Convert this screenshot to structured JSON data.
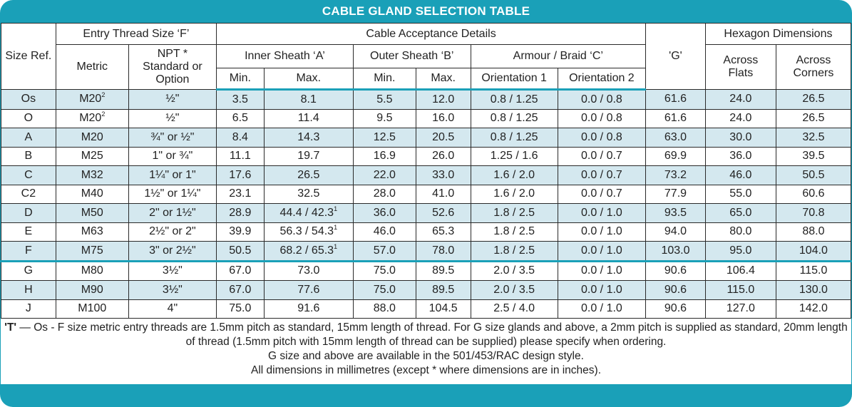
{
  "title": "CABLE GLAND SELECTION TABLE",
  "header": {
    "size_ref": "Size Ref.",
    "entry_thread": "Entry Thread Size ‘F’",
    "cable_acceptance": "Cable Acceptance Details",
    "g": "'G'",
    "hexagon": "Hexagon Dimensions",
    "metric": "Metric",
    "npt": "NPT *\nStandard or\nOption",
    "inner_sheath": "Inner Sheath ‘A’",
    "outer_sheath": "Outer Sheath ‘B’",
    "armour": "Armour / Braid ‘C’",
    "across_flats": "Across\nFlats",
    "across_corners": "Across\nCorners",
    "min": "Min.",
    "max": "Max.",
    "orientation1": "Orientation 1",
    "orientation2": "Orientation 2"
  },
  "rows": [
    {
      "size": "Os",
      "metric": "M20",
      "metric_sup": "2",
      "npt": "½\"",
      "a_min": "3.5",
      "a_max": "8.1",
      "a_max_sup": "",
      "b_min": "5.5",
      "b_max": "12.0",
      "o1": "0.8 / 1.25",
      "o2": "0.0 / 0.8",
      "g": "61.6",
      "af": "24.0",
      "ac": "26.5"
    },
    {
      "size": "O",
      "metric": "M20",
      "metric_sup": "2",
      "npt": "½\"",
      "a_min": "6.5",
      "a_max": "11.4",
      "a_max_sup": "",
      "b_min": "9.5",
      "b_max": "16.0",
      "o1": "0.8 / 1.25",
      "o2": "0.0 / 0.8",
      "g": "61.6",
      "af": "24.0",
      "ac": "26.5"
    },
    {
      "size": "A",
      "metric": "M20",
      "metric_sup": "",
      "npt": "¾\" or ½\"",
      "a_min": "8.4",
      "a_max": "14.3",
      "a_max_sup": "",
      "b_min": "12.5",
      "b_max": "20.5",
      "o1": "0.8 / 1.25",
      "o2": "0.0 / 0.8",
      "g": "63.0",
      "af": "30.0",
      "ac": "32.5"
    },
    {
      "size": "B",
      "metric": "M25",
      "metric_sup": "",
      "npt": "1\" or ¾\"",
      "a_min": "11.1",
      "a_max": "19.7",
      "a_max_sup": "",
      "b_min": "16.9",
      "b_max": "26.0",
      "o1": "1.25 / 1.6",
      "o2": "0.0 / 0.7",
      "g": "69.9",
      "af": "36.0",
      "ac": "39.5"
    },
    {
      "size": "C",
      "metric": "M32",
      "metric_sup": "",
      "npt": "1¼\" or 1\"",
      "a_min": "17.6",
      "a_max": "26.5",
      "a_max_sup": "",
      "b_min": "22.0",
      "b_max": "33.0",
      "o1": "1.6 / 2.0",
      "o2": "0.0 / 0.7",
      "g": "73.2",
      "af": "46.0",
      "ac": "50.5"
    },
    {
      "size": "C2",
      "metric": "M40",
      "metric_sup": "",
      "npt": "1½\" or 1¼\"",
      "a_min": "23.1",
      "a_max": "32.5",
      "a_max_sup": "",
      "b_min": "28.0",
      "b_max": "41.0",
      "o1": "1.6 / 2.0",
      "o2": "0.0 / 0.7",
      "g": "77.9",
      "af": "55.0",
      "ac": "60.6"
    },
    {
      "size": "D",
      "metric": "M50",
      "metric_sup": "",
      "npt": "2\" or 1½\"",
      "a_min": "28.9",
      "a_max": "44.4 / 42.3",
      "a_max_sup": "1",
      "b_min": "36.0",
      "b_max": "52.6",
      "o1": "1.8 / 2.5",
      "o2": "0.0 / 1.0",
      "g": "93.5",
      "af": "65.0",
      "ac": "70.8"
    },
    {
      "size": "E",
      "metric": "M63",
      "metric_sup": "",
      "npt": "2½\" or 2\"",
      "a_min": "39.9",
      "a_max": "56.3 / 54.3",
      "a_max_sup": "1",
      "b_min": "46.0",
      "b_max": "65.3",
      "o1": "1.8 / 2.5",
      "o2": "0.0 / 1.0",
      "g": "94.0",
      "af": "80.0",
      "ac": "88.0"
    },
    {
      "size": "F",
      "metric": "M75",
      "metric_sup": "",
      "npt": "3\" or 2½\"",
      "a_min": "50.5",
      "a_max": "68.2 / 65.3",
      "a_max_sup": "1",
      "b_min": "57.0",
      "b_max": "78.0",
      "o1": "1.8 / 2.5",
      "o2": "0.0 / 1.0",
      "g": "103.0",
      "af": "95.0",
      "ac": "104.0"
    },
    {
      "size": "G",
      "metric": "M80",
      "metric_sup": "",
      "npt": "3½\"",
      "a_min": "67.0",
      "a_max": "73.0",
      "a_max_sup": "",
      "b_min": "75.0",
      "b_max": "89.5",
      "o1": "2.0 / 3.5",
      "o2": "0.0 / 1.0",
      "g": "90.6",
      "af": "106.4",
      "ac": "115.0"
    },
    {
      "size": "H",
      "metric": "M90",
      "metric_sup": "",
      "npt": "3½\"",
      "a_min": "67.0",
      "a_max": "77.6",
      "a_max_sup": "",
      "b_min": "75.0",
      "b_max": "89.5",
      "o1": "2.0 / 3.5",
      "o2": "0.0 / 1.0",
      "g": "90.6",
      "af": "115.0",
      "ac": "130.0"
    },
    {
      "size": "J",
      "metric": "M100",
      "metric_sup": "",
      "npt": "4\"",
      "a_min": "75.0",
      "a_max": "91.6",
      "a_max_sup": "",
      "b_min": "88.0",
      "b_max": "104.5",
      "o1": "2.5 / 4.0",
      "o2": "0.0 / 1.0",
      "g": "90.6",
      "af": "127.0",
      "ac": "142.0"
    }
  ],
  "notes": {
    "t_label": "'T'",
    "line1": " — Os - F size metric entry threads are 1.5mm pitch as standard, 15mm length of thread. For G size glands and above, a 2mm pitch is supplied as standard, 20mm length of thread (1.5mm pitch with 15mm length of thread can be supplied) please specify when ordering.",
    "line2": "G size and above are available in the 501/453/RAC design style.",
    "line3": "All dimensions in millimetres (except * where dimensions are in inches)."
  },
  "colors": {
    "accent": "#1aa0b8",
    "row_shade": "#d4e8ef",
    "grid": "#2a2a2a"
  }
}
